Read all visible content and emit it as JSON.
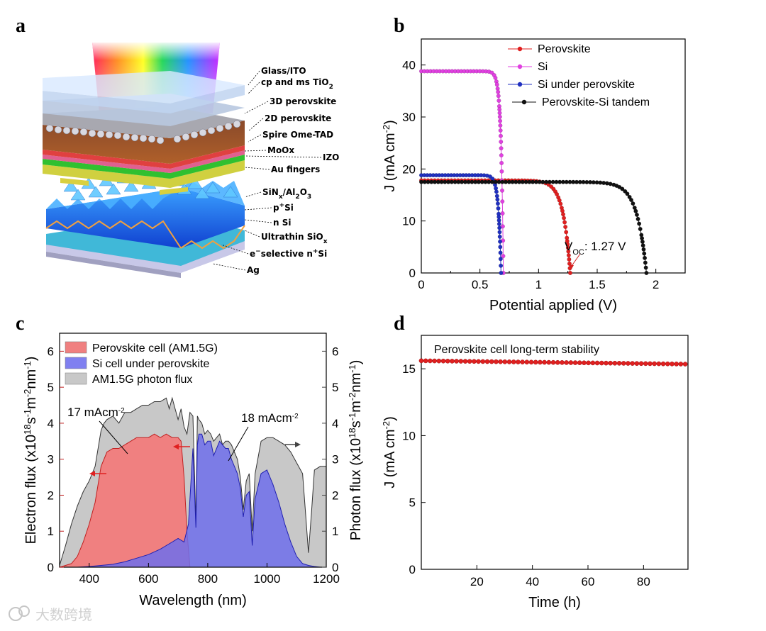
{
  "panels": {
    "a": {
      "label": "a",
      "layers": [
        {
          "text": "Glass/ITO"
        },
        {
          "text": "cp and ms TiO",
          "sub": "2"
        },
        {
          "text": "3D perovskite"
        },
        {
          "text": "2D perovskite"
        },
        {
          "text": "Spire Ome-TAD"
        },
        {
          "text": "MoOx"
        },
        {
          "text": "IZO"
        },
        {
          "text": "Au fingers"
        },
        {
          "text": "SiN",
          "sub": "x",
          "rest": "/Al",
          "sub2": "2",
          "rest2": "O",
          "sub3": "3"
        },
        {
          "text": "p",
          "sup": "+",
          "rest": "Si"
        },
        {
          "text": "n Si"
        },
        {
          "text": "Ultrathin SiO",
          "sub": "x"
        },
        {
          "text": "e",
          "sup": "−",
          "rest": "selective n",
          "sup2": "+",
          "rest2": "Si"
        },
        {
          "text": "Ag"
        }
      ]
    },
    "b": {
      "label": "b"
    },
    "c": {
      "label": "c"
    },
    "d": {
      "label": "d"
    }
  },
  "watermark": "大数跨境",
  "chart_data": [
    {
      "panel": "b",
      "type": "line",
      "xlabel": "Potential applied (V)",
      "ylabel": "J (mA cm",
      "ylabel_sup": "-2",
      "xlim": [
        0,
        2.25
      ],
      "ylim": [
        0,
        45
      ],
      "xticks": [
        0,
        0.5,
        1,
        1.5,
        2
      ],
      "yticks": [
        0,
        10,
        20,
        30,
        40
      ],
      "annotation": {
        "text": "V",
        "sub": "OC",
        "rest": ": 1.27 V",
        "x": 1.27,
        "color": "#d42020"
      },
      "series": [
        {
          "name": "Perovskite",
          "color": "#e02020",
          "jsc": 17.8,
          "voc": 1.27,
          "knee": 0.06
        },
        {
          "name": "Si",
          "color": "#e040e0",
          "jsc": 38.8,
          "voc": 0.7,
          "knee": 0.02
        },
        {
          "name": "Si under perovskite",
          "color": "#2030c0",
          "jsc": 18.8,
          "voc": 0.68,
          "knee": 0.022
        },
        {
          "name": "Perovskite-Si tandem",
          "color": "#111111",
          "jsc": 17.5,
          "voc": 1.92,
          "knee": 0.08
        }
      ]
    },
    {
      "panel": "c",
      "type": "area",
      "xlabel": "Wavelength (nm)",
      "ylabel_left": "Electron flux (x10",
      "ylabel_left_sup": "18",
      "ylabel_left_rest": "s",
      "ylabel_right": "Photon flux (x10",
      "units_sup1": "-1",
      "units_m": "m",
      "units_sup2": "-2",
      "units_nm": "nm",
      "units_close": ")",
      "xlim": [
        300,
        1200
      ],
      "ylim": [
        0,
        6.5
      ],
      "xticks": [
        400,
        600,
        800,
        1000,
        1200
      ],
      "yticks": [
        0,
        1,
        2,
        3,
        4,
        5,
        6
      ],
      "legend": [
        {
          "name": "Perovskite cell (AM1.5G)",
          "color": "#f08080"
        },
        {
          "name": "Si cell under perovskite",
          "color": "#8080f0"
        },
        {
          "name": "AM1.5G photon flux",
          "color": "#c8c8c8"
        }
      ],
      "annotations": [
        {
          "text": "17 mAcm",
          "sup": "-2",
          "color": "#c02020"
        },
        {
          "text": "18 mAcm",
          "sup": "-2",
          "color": "#2020b0"
        }
      ],
      "am15g": {
        "x": [
          300,
          320,
          340,
          360,
          380,
          400,
          420,
          440,
          450,
          460,
          480,
          500,
          520,
          540,
          560,
          580,
          600,
          620,
          640,
          660,
          670,
          680,
          690,
          700,
          710,
          720,
          730,
          740,
          750,
          760,
          765,
          770,
          780,
          790,
          800,
          810,
          820,
          830,
          840,
          850,
          860,
          870,
          880,
          890,
          900,
          910,
          920,
          930,
          940,
          950,
          960,
          980,
          1000,
          1020,
          1040,
          1060,
          1080,
          1100,
          1120,
          1130,
          1140,
          1150,
          1160,
          1180,
          1200
        ],
        "y": [
          0.05,
          0.6,
          1.2,
          1.7,
          2.1,
          2.4,
          2.8,
          3.8,
          4.0,
          4.1,
          4.2,
          4.0,
          4.3,
          4.3,
          4.4,
          4.5,
          4.5,
          4.6,
          4.6,
          4.7,
          4.4,
          4.7,
          4.4,
          4.1,
          4.4,
          3.9,
          3.7,
          4.3,
          4.2,
          1.2,
          4.2,
          4.1,
          4.0,
          3.7,
          3.8,
          3.7,
          3.5,
          3.6,
          3.7,
          3.4,
          3.5,
          3.5,
          3.4,
          3.2,
          3.0,
          2.5,
          1.6,
          2.4,
          2.6,
          1.0,
          2.6,
          3.5,
          3.6,
          3.6,
          3.5,
          3.4,
          3.2,
          2.9,
          2.6,
          1.5,
          0.4,
          1.5,
          2.7,
          2.8,
          2.8
        ]
      },
      "perovskite": {
        "x": [
          300,
          320,
          340,
          360,
          380,
          400,
          420,
          440,
          460,
          480,
          500,
          520,
          540,
          560,
          580,
          600,
          620,
          640,
          660,
          680,
          700,
          710,
          720,
          730,
          740
        ],
        "y": [
          0,
          0.05,
          0.1,
          0.3,
          0.7,
          1.2,
          1.8,
          2.8,
          3.2,
          3.3,
          3.3,
          3.4,
          3.5,
          3.6,
          3.6,
          3.6,
          3.7,
          3.6,
          3.7,
          3.6,
          3.6,
          3.5,
          2.5,
          1.0,
          0
        ]
      },
      "si": {
        "x": [
          300,
          360,
          400,
          440,
          480,
          520,
          560,
          600,
          640,
          660,
          680,
          700,
          720,
          735,
          745,
          750,
          760,
          765,
          770,
          780,
          790,
          800,
          810,
          820,
          830,
          840,
          850,
          860,
          870,
          880,
          890,
          900,
          910,
          920,
          930,
          940,
          950,
          960,
          980,
          1000,
          1020,
          1040,
          1060,
          1080,
          1100,
          1120,
          1140,
          1160,
          1180
        ],
        "y": [
          0,
          0,
          0.02,
          0.05,
          0.08,
          0.15,
          0.25,
          0.35,
          0.5,
          0.6,
          0.7,
          0.8,
          0.7,
          1.2,
          2.6,
          3.3,
          1.1,
          3.4,
          3.7,
          3.7,
          3.4,
          3.5,
          3.5,
          3.1,
          3.3,
          3.5,
          3.4,
          3.3,
          3.3,
          3.0,
          2.8,
          2.6,
          2.2,
          1.4,
          2.0,
          2.1,
          0.6,
          1.9,
          2.6,
          2.7,
          2.3,
          1.8,
          1.2,
          0.7,
          0.3,
          0.1,
          0.05,
          0.02,
          0
        ]
      }
    },
    {
      "panel": "d",
      "type": "scatter",
      "title": "Perovskite cell long-term stability",
      "xlabel": "Time (h)",
      "ylabel": "J (mA cm",
      "ylabel_sup": "-2",
      "ylabel_close": ")",
      "xlim": [
        0,
        96
      ],
      "ylim": [
        0,
        17.5
      ],
      "xticks": [
        20,
        40,
        60,
        80
      ],
      "yticks": [
        0,
        5,
        10,
        15
      ],
      "series": [
        {
          "name": "Perovskite",
          "color": "#e02020",
          "start": 15.6,
          "end": 15.35,
          "x_end": 95
        }
      ]
    }
  ]
}
